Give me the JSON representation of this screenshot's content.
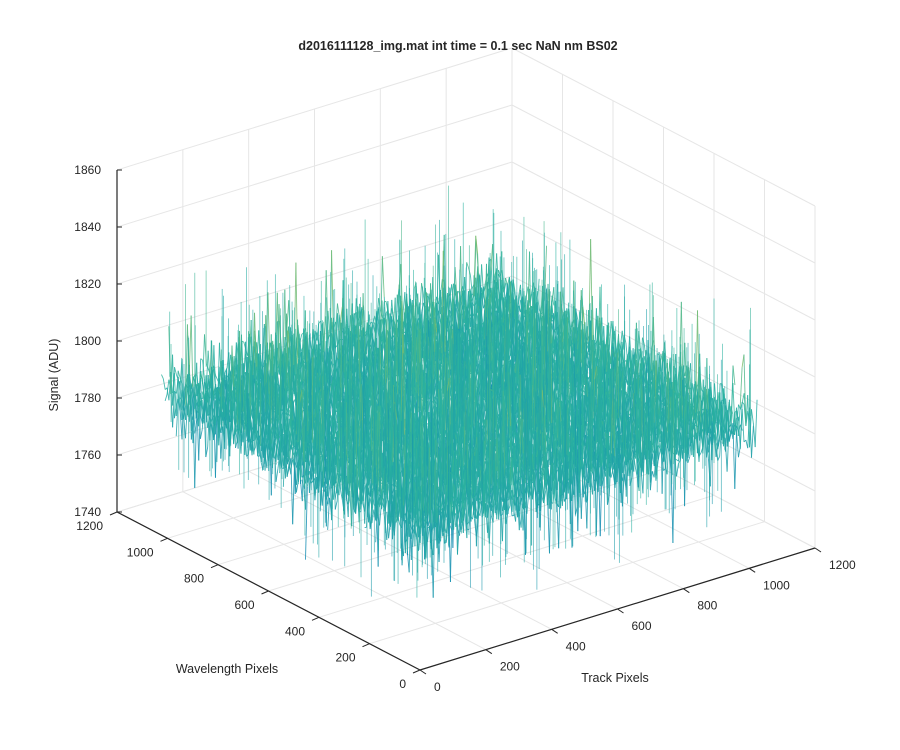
{
  "chart_data": {
    "type": "surface",
    "title": "d2016111128_img.mat int time = 0.1 sec  NaN nm BS02",
    "xlabel": "Track Pixels",
    "ylabel": "Wavelength Pixels",
    "zlabel": "Signal (ADU)",
    "xlim": [
      0,
      1200
    ],
    "ylim": [
      0,
      1200
    ],
    "zlim": [
      1740,
      1860
    ],
    "x_ticks": [
      "0",
      "200",
      "400",
      "600",
      "800",
      "1000",
      "1200"
    ],
    "y_ticks": [
      "0",
      "200",
      "400",
      "600",
      "800",
      "1000",
      "1200"
    ],
    "z_ticks": [
      "1740",
      "1760",
      "1780",
      "1800",
      "1820",
      "1840",
      "1860"
    ],
    "grid": true,
    "colormap": "parula",
    "data_extent": {
      "x": [
        0,
        1024
      ],
      "y": [
        0,
        1024
      ]
    },
    "signal_summary": {
      "mean": 1790,
      "typical_min": 1755,
      "typical_max": 1830,
      "peak_max": 1855
    },
    "colors": {
      "low": "#0072BD",
      "mid": "#2BB3A0",
      "high": "#E1C82E"
    }
  }
}
